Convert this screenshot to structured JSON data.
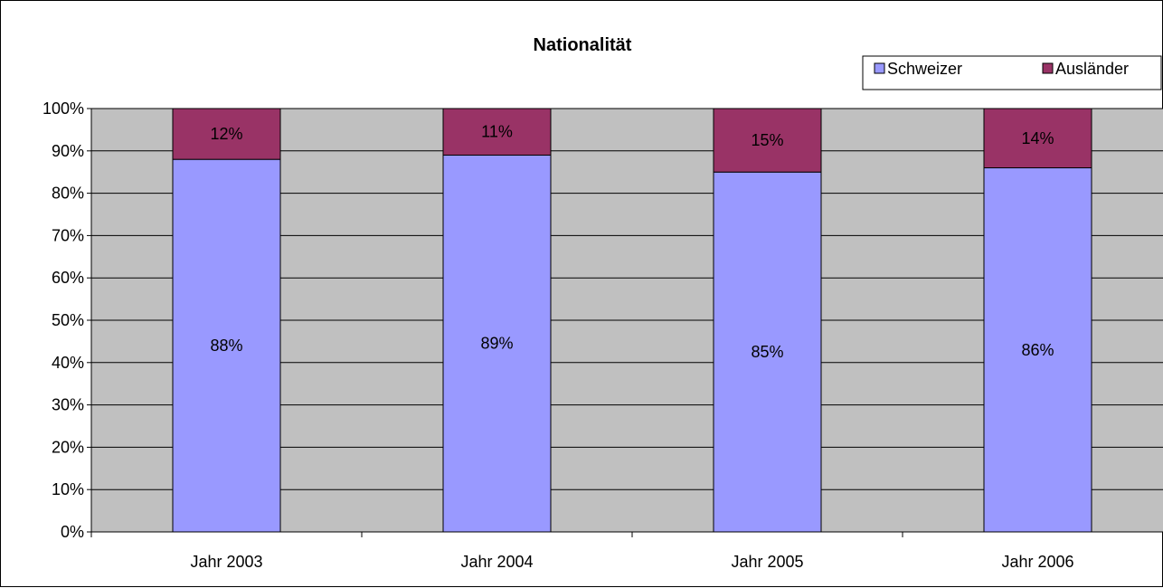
{
  "chart_data": {
    "type": "bar",
    "stacked": true,
    "title": "Nationalität",
    "categories": [
      "Jahr 2003",
      "Jahr 2004",
      "Jahr 2005",
      "Jahr 2006"
    ],
    "series": [
      {
        "name": "Schweizer",
        "values": [
          88,
          89,
          85,
          86
        ],
        "labels": [
          "88%",
          "89%",
          "85%",
          "86%"
        ],
        "color": "#9999ff"
      },
      {
        "name": "Ausländer",
        "values": [
          12,
          11,
          15,
          14
        ],
        "labels": [
          "12%",
          "11%",
          "15%",
          "14%"
        ],
        "color": "#993366"
      }
    ],
    "ylim": [
      0,
      100
    ],
    "yticks": [
      "0%",
      "10%",
      "20%",
      "30%",
      "40%",
      "50%",
      "60%",
      "70%",
      "80%",
      "90%",
      "100%"
    ],
    "xlabel": "",
    "ylabel": "",
    "grid": true,
    "plot_background": "#c0c0c0",
    "legend_position": "top-right"
  }
}
